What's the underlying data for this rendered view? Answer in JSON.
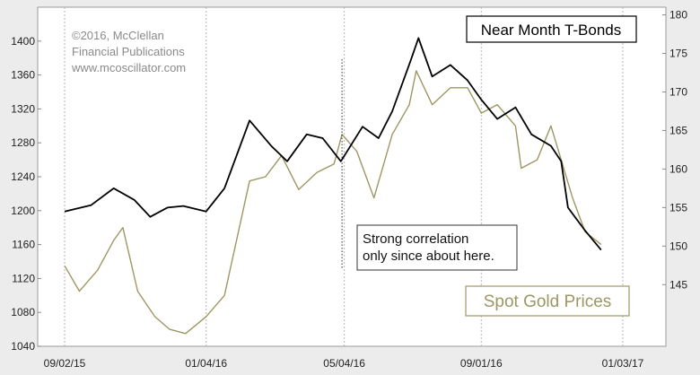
{
  "copyright": [
    "©2016, McClellan",
    "Financial Publications",
    "www.mcoscillator.com"
  ],
  "chart_data": {
    "type": "line",
    "x_tick_labels": [
      "09/02/15",
      "01/04/16",
      "05/04/16",
      "09/01/16",
      "01/03/17"
    ],
    "left_axis": {
      "ylim": [
        1040,
        1440
      ],
      "ticks": [
        1040,
        1080,
        1120,
        1160,
        1200,
        1240,
        1280,
        1320,
        1360,
        1400
      ]
    },
    "right_axis": {
      "ylim": [
        137,
        181
      ],
      "ticks": [
        145,
        150,
        155,
        160,
        165,
        170,
        175,
        180
      ]
    },
    "grid": "vertical dashed lines at x ticks",
    "series": [
      {
        "name": "Near Month T-Bonds",
        "axis": "right",
        "color": "#000000",
        "points": [
          [
            "09/02/15",
            154.5
          ],
          [
            "09/25/15",
            155.3
          ],
          [
            "10/15/15",
            157.5
          ],
          [
            "11/02/15",
            156.0
          ],
          [
            "11/16/15",
            153.8
          ],
          [
            "12/01/15",
            155.0
          ],
          [
            "12/15/15",
            155.2
          ],
          [
            "01/04/16",
            154.5
          ],
          [
            "01/20/16",
            157.5
          ],
          [
            "02/11/16",
            166.3
          ],
          [
            "03/01/16",
            163.0
          ],
          [
            "03/15/16",
            161.0
          ],
          [
            "04/01/16",
            164.5
          ],
          [
            "04/15/16",
            164.0
          ],
          [
            "05/01/16",
            161.0
          ],
          [
            "05/20/16",
            165.5
          ],
          [
            "06/03/16",
            164.0
          ],
          [
            "06/15/16",
            167.5
          ],
          [
            "07/01/16",
            174.0
          ],
          [
            "07/08/16",
            177.0
          ],
          [
            "07/20/16",
            172.0
          ],
          [
            "08/05/16",
            173.5
          ],
          [
            "08/20/16",
            171.5
          ],
          [
            "09/01/16",
            169.0
          ],
          [
            "09/15/16",
            166.5
          ],
          [
            "10/01/16",
            168.0
          ],
          [
            "10/15/16",
            164.5
          ],
          [
            "11/01/16",
            163.0
          ],
          [
            "11/10/16",
            161.0
          ],
          [
            "11/16/16",
            155.0
          ],
          [
            "12/01/16",
            152.0
          ],
          [
            "12/15/16",
            149.5
          ]
        ]
      },
      {
        "name": "Spot Gold Prices",
        "axis": "left",
        "color": "#9d9763",
        "points": [
          [
            "09/02/15",
            1135
          ],
          [
            "09/15/15",
            1105
          ],
          [
            "10/01/15",
            1130
          ],
          [
            "10/15/15",
            1165
          ],
          [
            "10/23/15",
            1180
          ],
          [
            "11/05/15",
            1105
          ],
          [
            "11/20/15",
            1075
          ],
          [
            "12/03/15",
            1060
          ],
          [
            "12/17/15",
            1055
          ],
          [
            "01/04/16",
            1075
          ],
          [
            "01/20/16",
            1100
          ],
          [
            "02/11/16",
            1235
          ],
          [
            "02/25/16",
            1240
          ],
          [
            "03/10/16",
            1265
          ],
          [
            "03/25/16",
            1225
          ],
          [
            "04/10/16",
            1245
          ],
          [
            "04/25/16",
            1255
          ],
          [
            "05/02/16",
            1290
          ],
          [
            "05/15/16",
            1270
          ],
          [
            "05/30/16",
            1215
          ],
          [
            "06/15/16",
            1290
          ],
          [
            "06/30/16",
            1325
          ],
          [
            "07/06/16",
            1365
          ],
          [
            "07/20/16",
            1325
          ],
          [
            "08/05/16",
            1345
          ],
          [
            "08/20/16",
            1345
          ],
          [
            "09/01/16",
            1315
          ],
          [
            "09/15/16",
            1325
          ],
          [
            "10/01/16",
            1300
          ],
          [
            "10/06/16",
            1250
          ],
          [
            "10/20/16",
            1260
          ],
          [
            "11/01/16",
            1300
          ],
          [
            "11/10/16",
            1260
          ],
          [
            "11/20/16",
            1215
          ],
          [
            "12/01/16",
            1175
          ],
          [
            "12/15/16",
            1160
          ]
        ]
      }
    ],
    "annotations": [
      {
        "text": [
          "Strong correlation",
          "only since about here."
        ],
        "at": "05/02/16",
        "style": "dotted vertical line with boxed text"
      }
    ],
    "legend": [
      {
        "label": "Near Month T-Bonds",
        "placement": "top-right",
        "color": "#000000"
      },
      {
        "label": "Spot Gold Prices",
        "placement": "bottom-right",
        "color": "#9d9763"
      }
    ]
  }
}
